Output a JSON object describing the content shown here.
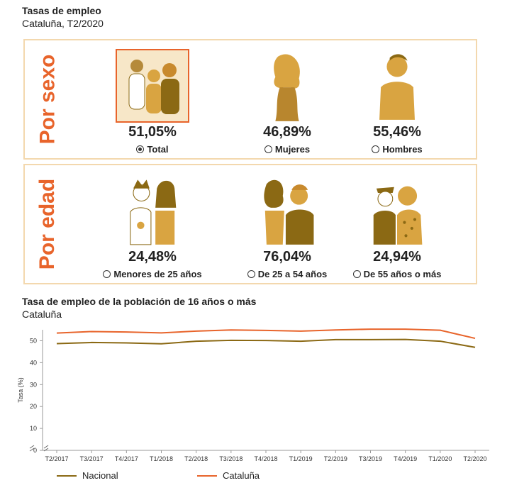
{
  "header": {
    "title": "Tasas de empleo",
    "subtitle": "Cataluña, T2/2020"
  },
  "sexo": {
    "label": "Por sexo",
    "items": [
      {
        "pct": "51,05%",
        "label": "Total",
        "selected": true
      },
      {
        "pct": "46,89%",
        "label": "Mujeres",
        "selected": false
      },
      {
        "pct": "55,46%",
        "label": "Hombres",
        "selected": false
      }
    ]
  },
  "edad": {
    "label": "Por edad",
    "items": [
      {
        "pct": "24,48%",
        "label": "Menores de 25 años",
        "selected": false
      },
      {
        "pct": "76,04%",
        "label": "De 25 a 54 años",
        "selected": false
      },
      {
        "pct": "24,94%",
        "label": "De 55 años o más",
        "selected": false
      }
    ]
  },
  "colors": {
    "accent": "#e8642b",
    "nacional": "#8b6914",
    "cataluna": "#e8642b",
    "panel_border": "#f3d8ae",
    "figure": "#d9a441"
  },
  "chart_data": {
    "type": "line",
    "title": "Tasa de empleo de la población de 16 años o más",
    "subtitle": "Cataluña",
    "xlabel": "",
    "ylabel": "Tasa (%)",
    "ylim": [
      0,
      55
    ],
    "yticks": [
      0,
      10,
      20,
      30,
      40,
      50
    ],
    "axis_break": true,
    "categories": [
      "T2/2017",
      "T3/2017",
      "T4/2017",
      "T1/2018",
      "T2/2018",
      "T3/2018",
      "T4/2018",
      "T1/2019",
      "T2/2019",
      "T3/2019",
      "T4/2019",
      "T1/2020",
      "T2/2020"
    ],
    "series": [
      {
        "name": "Nacional",
        "color": "#8b6914",
        "values": [
          48.7,
          49.2,
          49.0,
          48.6,
          49.8,
          50.2,
          50.1,
          49.8,
          50.5,
          50.5,
          50.6,
          49.8,
          47.0
        ]
      },
      {
        "name": "Cataluña",
        "color": "#e8642b",
        "values": [
          53.5,
          54.2,
          54.0,
          53.6,
          54.4,
          54.9,
          54.7,
          54.4,
          54.9,
          55.3,
          55.3,
          54.8,
          51.1
        ]
      }
    ],
    "legend": "bottom-left",
    "grid": false
  }
}
